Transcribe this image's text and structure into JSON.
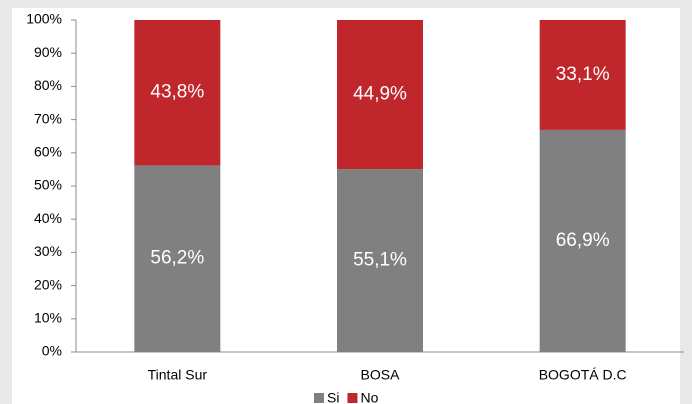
{
  "chart_data": {
    "type": "stacked_bar",
    "categories": [
      "Tintal Sur",
      "BOSA",
      "BOGOTÁ D.C"
    ],
    "series": [
      {
        "name": "Si",
        "color": "#808080",
        "values": [
          56.2,
          55.1,
          66.9
        ],
        "value_labels": [
          "56,2%",
          "55,1%",
          "66,9%"
        ]
      },
      {
        "name": "No",
        "color": "#c0272d",
        "values": [
          43.8,
          44.9,
          33.1
        ],
        "value_labels": [
          "43,8%",
          "44,9%",
          "33,1%"
        ]
      }
    ],
    "ylim": [
      0,
      100
    ],
    "yticks": [
      {
        "value": 0,
        "label": "0%"
      },
      {
        "value": 10,
        "label": "10%"
      },
      {
        "value": 20,
        "label": "20%"
      },
      {
        "value": 30,
        "label": "30%"
      },
      {
        "value": 40,
        "label": "40%"
      },
      {
        "value": 50,
        "label": "50%"
      },
      {
        "value": 60,
        "label": "60%"
      },
      {
        "value": 70,
        "label": "70%"
      },
      {
        "value": 80,
        "label": "80%"
      },
      {
        "value": 90,
        "label": "90%"
      },
      {
        "value": 100,
        "label": "100%"
      }
    ],
    "legend": "bottom"
  }
}
